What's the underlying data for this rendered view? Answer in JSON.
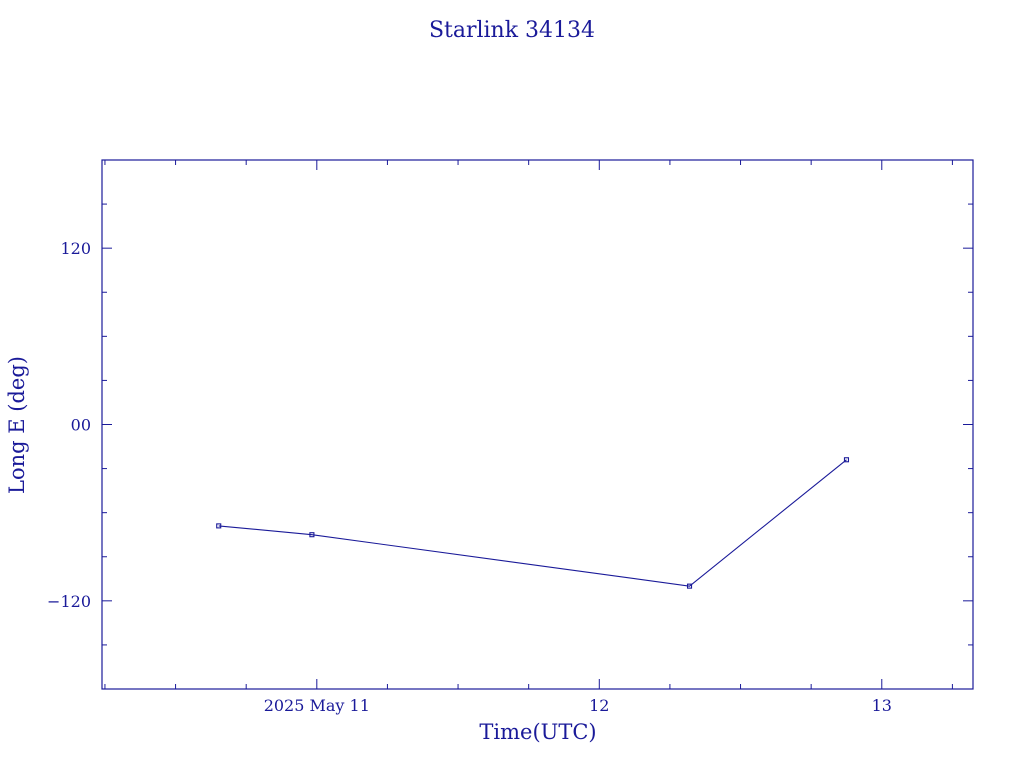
{
  "chart_data": {
    "type": "line",
    "title": "Starlink 34134",
    "xlabel": "Time(UTC)",
    "ylabel": "Long E (deg)",
    "x_tick_labels": [
      "2025 May 11",
      "12",
      "13"
    ],
    "y_tick_labels": [
      "120",
      "00",
      "−120"
    ],
    "x_ticks": [
      "2025-05-11T00:00",
      "2025-05-12T00:00",
      "2025-05-13T00:00"
    ],
    "y_ticks": [
      120,
      0,
      -120
    ],
    "xlim": [
      "2025-05-10T05:45",
      "2025-05-13T07:45"
    ],
    "ylim": [
      -180,
      180
    ],
    "grid": false,
    "series": [
      {
        "points": [
          {
            "x": "2025-05-10T15:40",
            "y": -69
          },
          {
            "x": "2025-05-10T23:35",
            "y": -75
          },
          {
            "x": "2025-05-12T07:40",
            "y": -110
          },
          {
            "x": "2025-05-12T21:00",
            "y": -24
          }
        ]
      }
    ]
  },
  "colors": {
    "ink": "#1a1a99",
    "background": "#ffffff"
  }
}
